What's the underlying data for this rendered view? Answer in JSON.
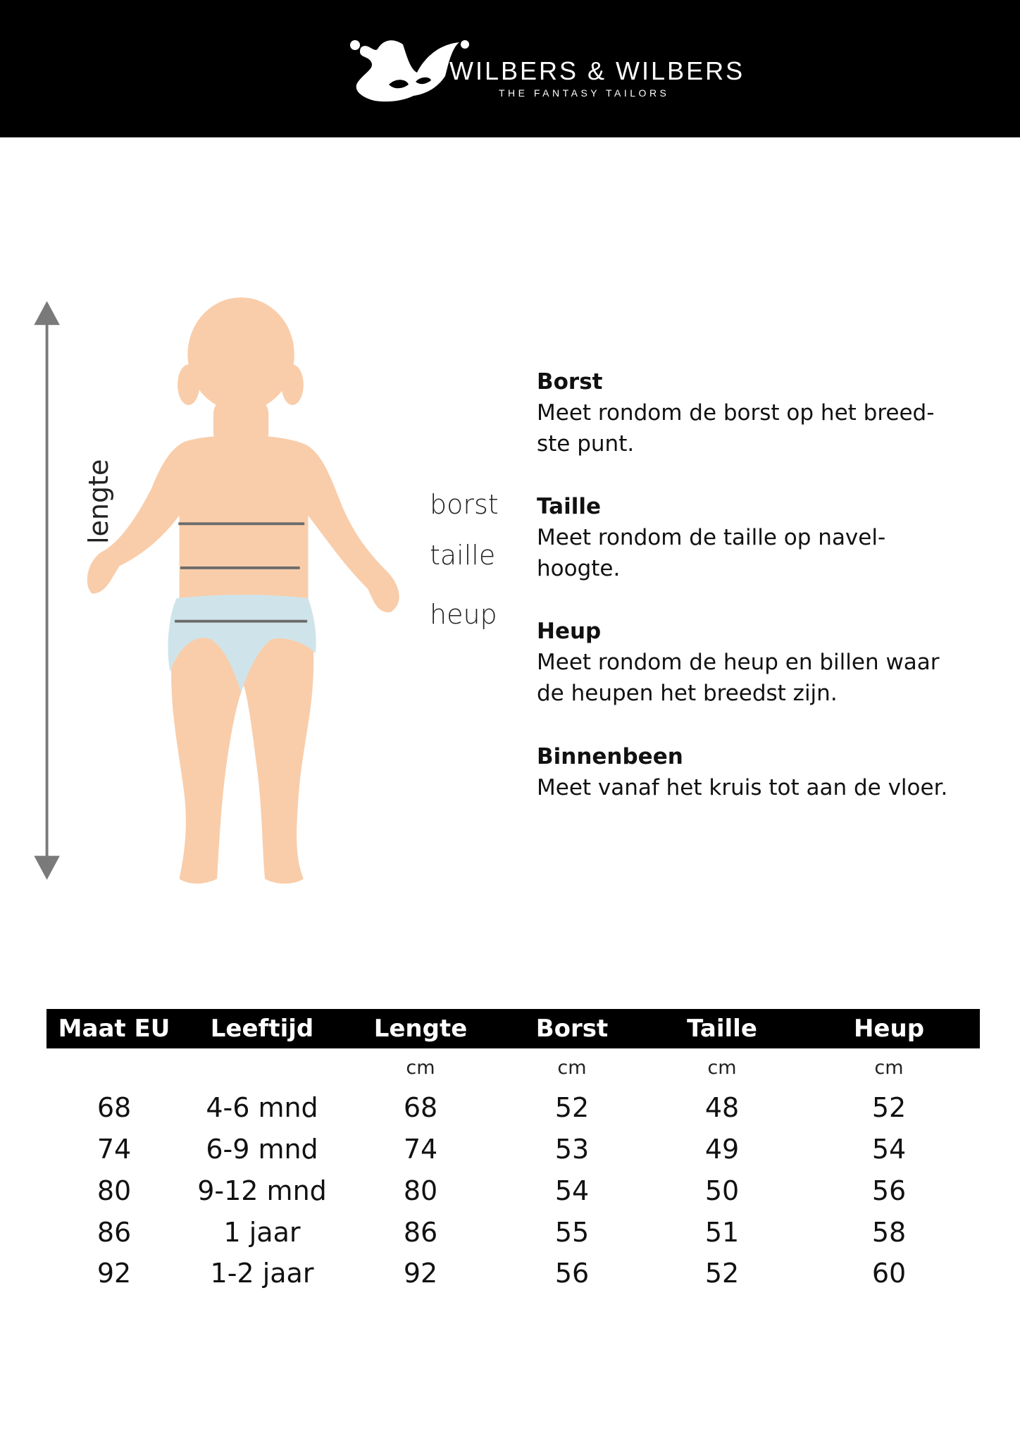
{
  "header": {
    "brand": "WILBERS & WILBERS",
    "tagline": "THE FANTASY TAILORS",
    "logo_icon": "jester-hat-mask-icon"
  },
  "figure": {
    "vertical_label": "lengte",
    "labels": [
      "borst",
      "taille",
      "heup"
    ],
    "colors": {
      "skin": "#f9cdaa",
      "diaper": "#cfe4ea",
      "lines": "#6b6b6b",
      "arrow": "#7a7a7a"
    }
  },
  "descriptions": [
    {
      "title": "Borst",
      "lines": [
        "Meet rondom de borst op het breed-",
        "ste punt."
      ]
    },
    {
      "title": "Taille",
      "lines": [
        "Meet rondom de taille op navel-",
        "hoogte."
      ]
    },
    {
      "title": "Heup",
      "lines": [
        "Meet rondom de heup en billen waar",
        "de heupen het breedst zijn."
      ]
    },
    {
      "title": "Binnenbeen",
      "lines": [
        "Meet vanaf het kruis tot aan de vloer."
      ]
    }
  ],
  "table": {
    "headers": [
      "Maat EU",
      "Leeftijd",
      "Lengte",
      "Borst",
      "Taille",
      "Heup"
    ],
    "units": [
      "",
      "",
      "cm",
      "cm",
      "cm",
      "cm"
    ],
    "rows": [
      [
        "68",
        "4-6 mnd",
        "68",
        "52",
        "48",
        "52"
      ],
      [
        "74",
        "6-9 mnd",
        "74",
        "53",
        "49",
        "54"
      ],
      [
        "80",
        "9-12 mnd",
        "80",
        "54",
        "50",
        "56"
      ],
      [
        "86",
        "1 jaar",
        "86",
        "55",
        "51",
        "58"
      ],
      [
        "92",
        "1-2 jaar",
        "92",
        "56",
        "52",
        "60"
      ]
    ]
  }
}
